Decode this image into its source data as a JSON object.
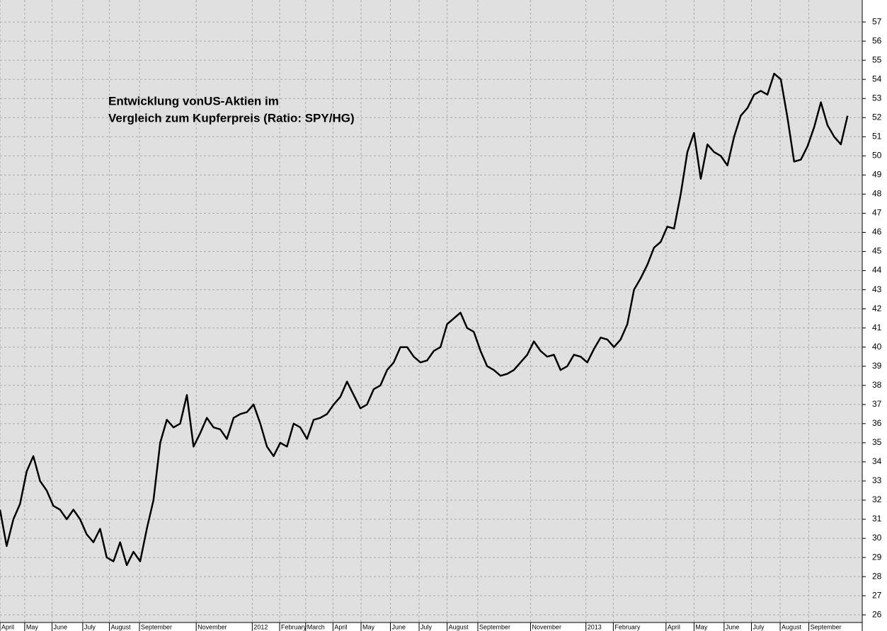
{
  "chart_data": {
    "type": "line",
    "title": "Entwicklung vonUS-Aktien im",
    "subtitle": "Vergleich zum Kupferpreis (Ratio: SPY/HG)",
    "series": [
      {
        "name": "SPY/HG",
        "color": "#000000",
        "values": [
          31.5,
          29.6,
          31,
          31.8,
          33.5,
          34.3,
          33,
          32.5,
          31.7,
          31.5,
          31,
          31.5,
          31,
          30.2,
          29.8,
          30.5,
          29,
          28.8,
          29.8,
          28.6,
          29.3,
          28.8,
          30.5,
          32,
          35,
          36.2,
          35.8,
          36,
          37.5,
          34.8,
          35.5,
          36.3,
          35.8,
          35.7,
          35.2,
          36.3,
          36.5,
          36.6,
          37,
          36,
          34.8,
          34.3,
          35,
          34.8,
          36,
          35.8,
          35.2,
          36.2,
          36.3,
          36.5,
          37,
          37.4,
          38.2,
          37.5,
          36.8,
          37,
          37.8,
          38,
          38.8,
          39.2,
          40,
          40,
          39.5,
          39.2,
          39.3,
          39.8,
          40,
          41.2,
          41.5,
          41.8,
          41,
          40.8,
          39.8,
          39,
          38.8,
          38.5,
          38.6,
          38.8,
          39.2,
          39.6,
          40.3,
          39.8,
          39.5,
          39.6,
          38.8,
          39,
          39.6,
          39.5,
          39.2,
          39.9,
          40.5,
          40.4,
          40,
          40.4,
          41.2,
          43,
          43.6,
          44.3,
          45.2,
          45.5,
          46.3,
          46.2,
          48,
          50.2,
          51.2,
          48.8,
          50.6,
          50.2,
          50,
          49.5,
          51,
          52.1,
          52.5,
          53.2,
          53.4,
          53.2,
          54.3,
          54,
          52,
          49.7,
          49.8,
          50.5,
          51.5,
          52.8,
          51.6,
          51,
          50.6,
          52.1
        ]
      }
    ],
    "xlim": [
      0,
      129.2
    ],
    "xticks": [
      {
        "value": 0,
        "label": "April"
      },
      {
        "value": 3.7,
        "label": "May"
      },
      {
        "value": 7.8,
        "label": "June"
      },
      {
        "value": 12.4,
        "label": "July"
      },
      {
        "value": 16.4,
        "label": "August"
      },
      {
        "value": 20.9,
        "label": "September"
      },
      {
        "value": 29.4,
        "label": "November"
      },
      {
        "value": 37.8,
        "label": "2012"
      },
      {
        "value": 41.9,
        "label": "February"
      },
      {
        "value": 45.8,
        "label": "March"
      },
      {
        "value": 49.9,
        "label": "April"
      },
      {
        "value": 54.1,
        "label": "May"
      },
      {
        "value": 58.5,
        "label": "June"
      },
      {
        "value": 62.8,
        "label": "July"
      },
      {
        "value": 67.0,
        "label": "August"
      },
      {
        "value": 71.6,
        "label": "September"
      },
      {
        "value": 79.5,
        "label": "November"
      },
      {
        "value": 87.8,
        "label": "2013"
      },
      {
        "value": 91.9,
        "label": "February"
      },
      {
        "value": 99.8,
        "label": "April"
      },
      {
        "value": 104.0,
        "label": "May"
      },
      {
        "value": 108.5,
        "label": "June"
      },
      {
        "value": 112.6,
        "label": "July"
      },
      {
        "value": 116.9,
        "label": "August"
      },
      {
        "value": 121.2,
        "label": "September"
      }
    ],
    "ylim": [
      25.6,
      58.15
    ],
    "yticks": [
      26,
      27,
      28,
      29,
      30,
      31,
      32,
      33,
      34,
      35,
      36,
      37,
      38,
      39,
      40,
      41,
      42,
      43,
      44,
      45,
      46,
      47,
      48,
      49,
      50,
      51,
      52,
      53,
      54,
      55,
      56,
      57
    ],
    "grid": true
  }
}
